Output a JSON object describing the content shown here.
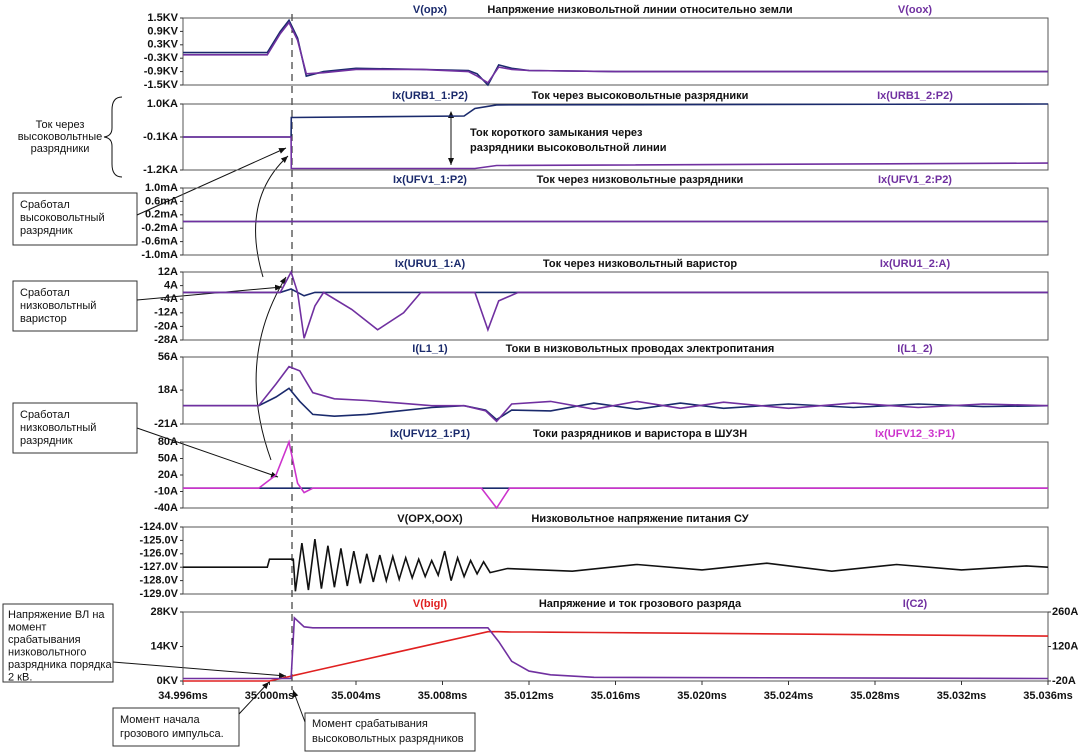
{
  "chart_data": [
    {
      "type": "line",
      "title": "Напряжение низковольтной линии относительно земли",
      "xlim": [
        34.996,
        35.036
      ],
      "x": [
        34.996,
        34.9992,
        34.9999,
        35.0005,
        35.0009,
        35.0013,
        35.0017,
        35.0025,
        35.004,
        35.007,
        35.0092,
        35.0096,
        35.0101,
        35.0106,
        35.0112,
        35.012,
        35.016,
        35.036
      ],
      "series": [
        {
          "name": "V(opx)",
          "color": "#1a2a6c",
          "values": [
            -0.05,
            -0.05,
            -0.05,
            0.9,
            1.4,
            0.6,
            -1.1,
            -0.9,
            -0.75,
            -0.8,
            -0.85,
            -1.0,
            -1.5,
            -0.6,
            -0.75,
            -0.85,
            -0.9,
            -0.9
          ]
        },
        {
          "name": "V(oox)",
          "color": "#7030a0",
          "values": [
            -0.15,
            -0.15,
            -0.15,
            0.8,
            1.3,
            0.5,
            -1.0,
            -0.95,
            -0.8,
            -0.8,
            -0.9,
            -1.1,
            -1.4,
            -0.7,
            -0.8,
            -0.85,
            -0.9,
            -0.9
          ]
        }
      ],
      "ylim": [
        -1.5,
        1.5
      ],
      "yticks": [
        {
          "value": 1.5,
          "label": "1.5KV"
        },
        {
          "value": 0.9,
          "label": "0.9KV"
        },
        {
          "value": 0.3,
          "label": "0.3KV"
        },
        {
          "value": -0.3,
          "label": "-0.3KV"
        },
        {
          "value": -0.9,
          "label": "-0.9KV"
        },
        {
          "value": -1.5,
          "label": "-1.5KV"
        }
      ]
    },
    {
      "type": "line",
      "title": "Ток через высоковольтные разрядники",
      "xlim": [
        34.996,
        35.036
      ],
      "x": [
        34.996,
        35.001,
        35.00101,
        35.009,
        35.0095,
        35.0105,
        35.036
      ],
      "series": [
        {
          "name": "Ix(URB1_1:P2)",
          "color": "#1a2a6c",
          "values": [
            -0.1,
            -0.1,
            0.55,
            0.6,
            0.85,
            0.97,
            1.0
          ]
        },
        {
          "name": "Ix(URB1_2:P2)",
          "color": "#7030a0",
          "values": [
            -0.1,
            -0.1,
            -1.15,
            -1.15,
            -1.15,
            -1.05,
            -0.97
          ]
        }
      ],
      "ylim": [
        -1.2,
        1.0
      ],
      "yticks": [
        {
          "value": 1.0,
          "label": "1.0KA"
        },
        {
          "value": -0.1,
          "label": "-0.1KA"
        },
        {
          "value": -1.2,
          "label": "-1.2KA"
        }
      ]
    },
    {
      "type": "line",
      "title": "Ток через низковольтные разрядники",
      "xlim": [
        34.996,
        35.036
      ],
      "x": [
        34.996,
        35.036
      ],
      "series": [
        {
          "name": "Ix(UFV1_1:P2)",
          "color": "#1a2a6c",
          "values": [
            0,
            0
          ]
        },
        {
          "name": "Ix(UFV1_2:P2)",
          "color": "#7030a0",
          "values": [
            0,
            0
          ]
        }
      ],
      "ylim": [
        -1.0,
        1.0
      ],
      "yticks": [
        {
          "value": 1.0,
          "label": "1.0mA"
        },
        {
          "value": 0.6,
          "label": "0.6mA"
        },
        {
          "value": 0.2,
          "label": "0.2mA"
        },
        {
          "value": -0.2,
          "label": "-0.2mA"
        },
        {
          "value": -0.6,
          "label": "-0.6mA"
        },
        {
          "value": -1.0,
          "label": "-1.0mA"
        }
      ]
    },
    {
      "type": "line",
      "title": "Ток через низковольтный варистор",
      "xlim": [
        34.996,
        35.036
      ],
      "x": [
        34.996,
        35.0005,
        35.001,
        35.0013,
        35.0016,
        35.0021,
        35.0025,
        35.0038,
        35.005,
        35.0062,
        35.007,
        35.0095,
        35.0101,
        35.0106,
        35.0115,
        35.036
      ],
      "series": [
        {
          "name": "Ix(URU1_1:A)",
          "color": "#1a2a6c",
          "values": [
            0,
            0,
            2,
            0,
            -2,
            0,
            0,
            0,
            0,
            0,
            0,
            0,
            0,
            0,
            0,
            0
          ]
        },
        {
          "name": "Ix(URU1_2:A)",
          "color": "#7030a0",
          "values": [
            0,
            0,
            12,
            0,
            -27,
            -8,
            0,
            -10,
            -22,
            -12,
            0,
            0,
            -22,
            -5,
            0,
            0
          ]
        }
      ],
      "ylim": [
        -28,
        12
      ],
      "yticks": [
        {
          "value": 12,
          "label": "12A"
        },
        {
          "value": 4,
          "label": "4A"
        },
        {
          "value": -4,
          "label": "-4A"
        },
        {
          "value": -12,
          "label": "-12A"
        },
        {
          "value": -20,
          "label": "-20A"
        },
        {
          "value": -28,
          "label": "-28A"
        }
      ]
    },
    {
      "type": "line",
      "title": "Токи в низковольтных проводах электропитания",
      "xlim": [
        34.996,
        35.036
      ],
      "x": [
        34.996,
        34.9995,
        35.0003,
        35.0009,
        35.0014,
        35.002,
        35.003,
        35.0045,
        35.006,
        35.0075,
        35.009,
        35.01,
        35.0105,
        35.0112,
        35.013,
        35.015,
        35.017,
        35.019,
        35.021,
        35.024,
        35.027,
        35.03,
        35.033,
        35.036
      ],
      "series": [
        {
          "name": "I(L1_1)",
          "color": "#1a2a6c",
          "values": [
            0,
            0,
            10,
            20,
            5,
            -10,
            -12,
            -10,
            -6,
            -2,
            0,
            -5,
            -16,
            -5,
            -6,
            3,
            -4,
            3,
            -3,
            2,
            -2,
            2,
            -1,
            0
          ]
        },
        {
          "name": "I(L1_2)",
          "color": "#7030a0",
          "values": [
            0,
            0,
            25,
            45,
            40,
            15,
            8,
            6,
            3,
            0,
            0,
            -6,
            -18,
            2,
            5,
            -4,
            5,
            -3,
            4,
            -3,
            3,
            -2,
            2,
            0
          ]
        }
      ],
      "ylim": [
        -21,
        56
      ],
      "yticks": [
        {
          "value": 56,
          "label": "56A"
        },
        {
          "value": 18,
          "label": "18A"
        },
        {
          "value": -21,
          "label": "-21A"
        }
      ]
    },
    {
      "type": "line",
      "title": "Токи разрядников и варистора в ШУЗН",
      "xlim": [
        34.996,
        35.036
      ],
      "x": [
        34.996,
        34.9995,
        35.0003,
        35.0009,
        35.0013,
        35.0016,
        35.002,
        35.0098,
        35.0105,
        35.0111,
        35.036
      ],
      "series": [
        {
          "name": "Ix(UFV12_1:P1)",
          "color": "#1a2a6c",
          "values": [
            -4,
            -4,
            -4,
            -4,
            -4,
            -4,
            -4,
            -4,
            -4,
            -4,
            -4
          ]
        },
        {
          "name": "Ix(UFV12_3:P1)",
          "color": "#cc33cc",
          "values": [
            -4,
            -4,
            20,
            80,
            5,
            -12,
            -4,
            -4,
            -40,
            -4,
            -4
          ]
        }
      ],
      "ylim": [
        -40,
        80
      ],
      "yticks": [
        {
          "value": 80,
          "label": "80A"
        },
        {
          "value": 50,
          "label": "50A"
        },
        {
          "value": 20,
          "label": "20A"
        },
        {
          "value": -10,
          "label": "-10A"
        },
        {
          "value": -40,
          "label": "-40A"
        }
      ]
    },
    {
      "type": "line",
      "title": "Низковольтное напряжение питания СУ",
      "xlim": [
        34.996,
        35.036
      ],
      "x": [
        34.996,
        34.9999,
        35.0,
        35.0011,
        35.0012,
        35.0015,
        35.0018,
        35.0021,
        35.0024,
        35.0027,
        35.003,
        35.0033,
        35.0036,
        35.0039,
        35.0042,
        35.0045,
        35.0048,
        35.0051,
        35.0054,
        35.0057,
        35.006,
        35.0063,
        35.0066,
        35.0069,
        35.0072,
        35.0075,
        35.0078,
        35.0081,
        35.0084,
        35.0087,
        35.009,
        35.0093,
        35.0096,
        35.0099,
        35.0102,
        35.011,
        35.014,
        35.017,
        35.02,
        35.023,
        35.026,
        35.029,
        35.032,
        35.035,
        35.036
      ],
      "series": [
        {
          "name": "V(OPX,OOX)",
          "color": "#111111",
          "values": [
            -127,
            -127,
            -126.4,
            -126.4,
            -128.8,
            -125.2,
            -128.7,
            -124.9,
            -128.6,
            -125.4,
            -128.5,
            -125.6,
            -128.4,
            -125.8,
            -128.2,
            -126.0,
            -128.1,
            -126.1,
            -128.0,
            -126.2,
            -127.9,
            -126.3,
            -127.8,
            -126.4,
            -127.7,
            -126.5,
            -127.6,
            -125.8,
            -128.0,
            -126.3,
            -127.7,
            -126.5,
            -127.5,
            -126.6,
            -127.4,
            -127.1,
            -127.3,
            -126.8,
            -127.2,
            -126.7,
            -127.3,
            -126.8,
            -127.2,
            -126.9,
            -127.0
          ]
        }
      ],
      "ylim": [
        -129,
        -124
      ],
      "yticks": [
        {
          "value": -124,
          "label": "-124.0V"
        },
        {
          "value": -125,
          "label": "-125.0V"
        },
        {
          "value": -126,
          "label": "-126.0V"
        },
        {
          "value": -127,
          "label": "-127.0V"
        },
        {
          "value": -128,
          "label": "-128.0V"
        },
        {
          "value": -129,
          "label": "-129.0V"
        }
      ]
    },
    {
      "type": "line",
      "title": "Напряжение и ток грозового разряда",
      "xlim": [
        34.996,
        35.036
      ],
      "x": [
        34.996,
        35.0,
        35.001,
        35.00115,
        35.0016,
        35.002,
        35.01,
        35.0101,
        35.0106,
        35.0112,
        35.012,
        35.013,
        35.015,
        35.036
      ],
      "series": [
        {
          "name": "V(bigl)",
          "color": "#e02020",
          "values": [
            0,
            0,
            2.0,
            2.3,
            3.2,
            4.0,
            19.8,
            20,
            20,
            19.9,
            19.9,
            19.8,
            19.7,
            18.2
          ]
        },
        {
          "name": "I(C2)",
          "color": "#7030a0",
          "axis": "y2",
          "values": [
            -10,
            -10,
            -10,
            236,
            200,
            196,
            196,
            196,
            140,
            60,
            20,
            5,
            -5,
            -10
          ]
        }
      ],
      "ylim": [
        0,
        28
      ],
      "yticks": [
        {
          "value": 28,
          "label": "28KV"
        },
        {
          "value": 14,
          "label": "14KV"
        },
        {
          "value": 0,
          "label": "0KV"
        }
      ],
      "y2lim": [
        -20,
        260
      ],
      "y2ticks": [
        {
          "value": 260,
          "label": "260A"
        },
        {
          "value": 120,
          "label": "120A"
        },
        {
          "value": -20,
          "label": "-20A"
        }
      ],
      "xticks": [
        {
          "value": 34.996,
          "label": "34.996ms"
        },
        {
          "value": 35.0,
          "label": "35.000ms"
        },
        {
          "value": 35.004,
          "label": "35.004ms"
        },
        {
          "value": 35.008,
          "label": "35.008ms"
        },
        {
          "value": 35.012,
          "label": "35.012ms"
        },
        {
          "value": 35.016,
          "label": "35.016ms"
        },
        {
          "value": 35.02,
          "label": "35.020ms"
        },
        {
          "value": 35.024,
          "label": "35.024ms"
        },
        {
          "value": 35.028,
          "label": "35.028ms"
        },
        {
          "value": 35.032,
          "label": "35.032ms"
        },
        {
          "value": 35.036,
          "label": "35.036ms"
        }
      ]
    }
  ],
  "annotations": {
    "hv_bracket": [
      "Ток через",
      "высоковольтные",
      "разрядники"
    ],
    "short_circuit": [
      "Ток короткого замыкания через",
      "разрядники высоковольтной линии"
    ],
    "hv_fired": [
      "Сработал",
      "высоковольтный",
      "разрядник"
    ],
    "lv_varistor": [
      "Сработал",
      "низковольтный",
      "варистор"
    ],
    "lv_arrester": [
      "Сработал",
      "низковольтный",
      "разрядник"
    ],
    "line_voltage": [
      "Напряжение ВЛ на",
      "момент",
      "срабатывания",
      "низковольтного",
      "разрядника порядка",
      "2 кВ."
    ],
    "impulse_start": [
      "Момент начала",
      "грозового импульса."
    ],
    "hv_moment": [
      "Момент срабатывания",
      "высоковольтных разрядников"
    ]
  }
}
